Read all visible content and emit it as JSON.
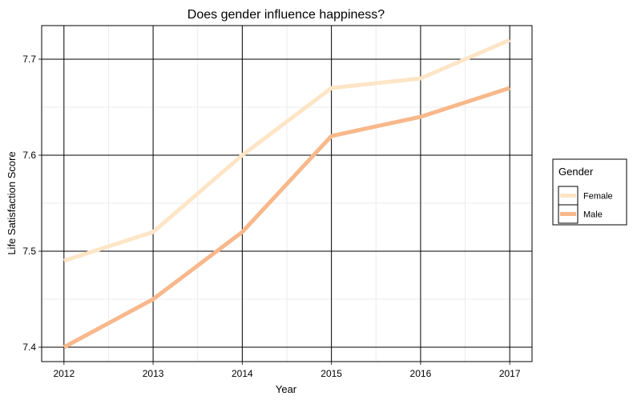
{
  "chart_data": {
    "type": "line",
    "title": "Does gender influence happiness?",
    "xlabel": "Year",
    "ylabel": "Life Satisfaction Score",
    "x": [
      2012,
      2013,
      2014,
      2015,
      2016,
      2017
    ],
    "x_tick_labels": [
      "2012",
      "2013",
      "2014",
      "2015",
      "2016",
      "2017"
    ],
    "y_ticks": [
      7.4,
      7.5,
      7.6,
      7.7
    ],
    "y_tick_labels": [
      "7.4",
      "7.5",
      "7.6",
      "7.7"
    ],
    "xlim": [
      2011.75,
      2017.25
    ],
    "ylim": [
      7.385,
      7.735
    ],
    "grid": true,
    "legend": {
      "title": "Gender",
      "position": "right"
    },
    "series": [
      {
        "name": "Female",
        "color": "#fde5c6",
        "values": [
          7.49,
          7.52,
          7.6,
          7.67,
          7.68,
          7.72
        ]
      },
      {
        "name": "Male",
        "color": "#f8b88b",
        "values": [
          7.4,
          7.45,
          7.52,
          7.62,
          7.64,
          7.67
        ]
      }
    ]
  }
}
